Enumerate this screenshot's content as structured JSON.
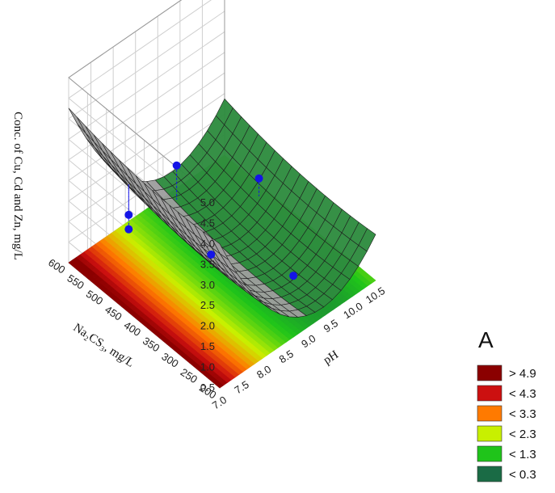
{
  "chart_data": {
    "type": "surface3d",
    "zlabel": "Conc. of Cu, Cd and Zn, mg/L",
    "xlabel": "pH",
    "ylabel": "Na₂CS₃, mg/L",
    "x_ticks": [
      "7.0",
      "7.5",
      "8.0",
      "8.5",
      "9.0",
      "9.5",
      "10.0",
      "10.5"
    ],
    "y_ticks": [
      "200",
      "250",
      "300",
      "350",
      "400",
      "450",
      "500",
      "550",
      "600"
    ],
    "z_ticks": [
      "0.5",
      "1.0",
      "1.5",
      "2.0",
      "2.5",
      "3.0",
      "3.5",
      "4.0",
      "4.5",
      "5.0"
    ],
    "xlim": [
      7.0,
      10.5
    ],
    "ylim": [
      200,
      600
    ],
    "zlim": [
      0.5,
      5.0
    ],
    "observed_points": [
      {
        "pH": 7.5,
        "Na2CS3": 500,
        "conc": 2.05
      },
      {
        "pH": 7.5,
        "Na2CS3": 500,
        "conc": 1.7
      },
      {
        "pH": 9.0,
        "Na2CS3": 550,
        "conc": 1.75
      },
      {
        "pH": 8.5,
        "Na2CS3": 400,
        "conc": 1.1
      },
      {
        "pH": 10.0,
        "Na2CS3": 450,
        "conc": 1.45
      },
      {
        "pH": 9.5,
        "Na2CS3": 300,
        "conc": 0.6
      }
    ],
    "legend": {
      "title": "A",
      "items": [
        {
          "label": "> 4.9",
          "color": "#8b0000"
        },
        {
          "label": "< 4.3",
          "color": "#cc1010"
        },
        {
          "label": "< 3.3",
          "color": "#ff7a00"
        },
        {
          "label": "< 2.3",
          "color": "#c8f000"
        },
        {
          "label": "< 1.3",
          "color": "#1fc41a"
        },
        {
          "label": "< 0.3",
          "color": "#1a6b45"
        }
      ]
    },
    "colors": {
      "surface_front": "#9e9e9e",
      "surface_back": "#2e8b3e",
      "points": "#1414e6"
    }
  }
}
